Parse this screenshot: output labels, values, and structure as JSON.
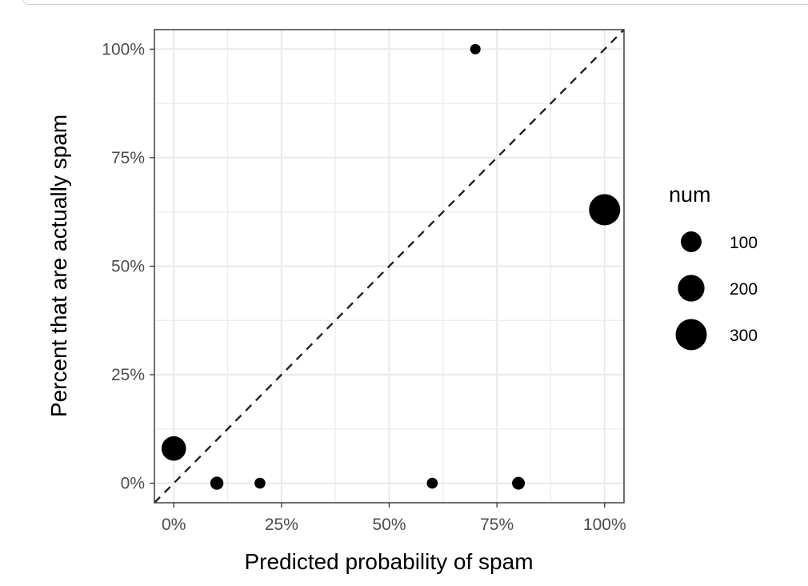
{
  "chart_data": {
    "type": "scatter",
    "xlabel": "Predicted probability of spam",
    "ylabel": "Percent that are actually spam",
    "xlim": [
      -0.045,
      1.045
    ],
    "ylim": [
      -0.045,
      1.045
    ],
    "x_ticks": [
      0,
      0.25,
      0.5,
      0.75,
      1
    ],
    "x_tick_labels": [
      "0%",
      "25%",
      "50%",
      "75%",
      "100%"
    ],
    "y_ticks": [
      0,
      0.25,
      0.5,
      0.75,
      1
    ],
    "y_tick_labels": [
      "0%",
      "25%",
      "50%",
      "75%",
      "100%"
    ],
    "grid": true,
    "reference_line": {
      "type": "identity",
      "style": "dashed",
      "color": "#222222"
    },
    "size_variable": "num",
    "points": [
      {
        "x": 0.0,
        "y": 0.08,
        "num": 160
      },
      {
        "x": 0.1,
        "y": 0.0,
        "num": 22
      },
      {
        "x": 0.2,
        "y": 0.0,
        "num": 10
      },
      {
        "x": 0.6,
        "y": 0.0,
        "num": 10
      },
      {
        "x": 0.7,
        "y": 1.0,
        "num": 8
      },
      {
        "x": 0.8,
        "y": 0.0,
        "num": 20
      },
      {
        "x": 1.0,
        "y": 0.63,
        "num": 300
      }
    ],
    "legend": {
      "title": "num",
      "placement": "right",
      "entries": [
        {
          "label": "100",
          "value": 100
        },
        {
          "label": "200",
          "value": 200
        },
        {
          "label": "300",
          "value": 300
        }
      ]
    },
    "colors": {
      "point": "#000000",
      "grid": "#ebebeb",
      "panel_border": "#333333",
      "reference_line": "#222222",
      "tick_text": "#4d4d4d"
    }
  }
}
